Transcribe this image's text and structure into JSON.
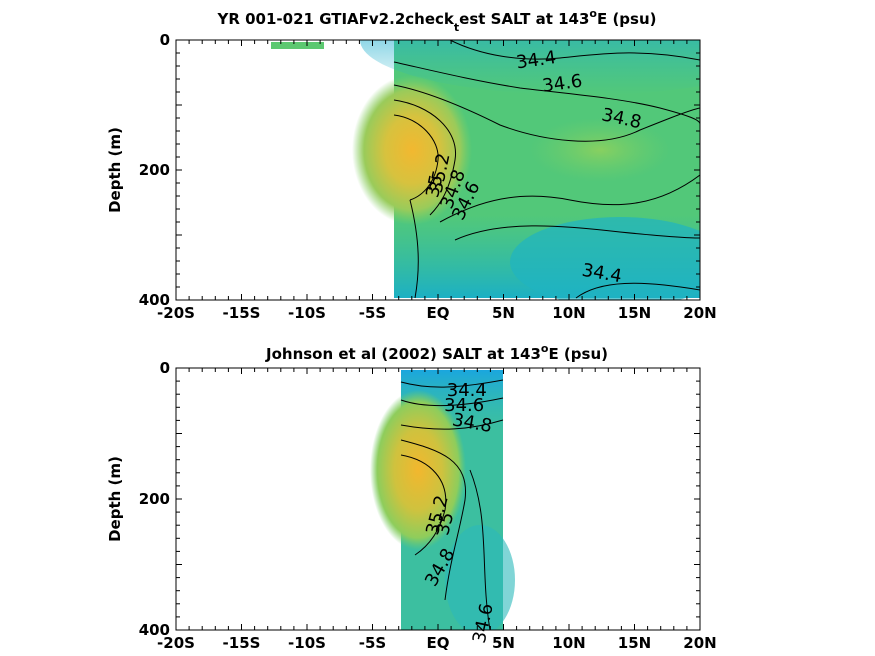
{
  "chart_data": [
    {
      "type": "heatmap",
      "title_main": "YR 001-021 GTIAFv2.2check",
      "title_sub": "t",
      "title_rest": "est SALT at 143",
      "title_deg": "o",
      "title_end": "E (psu)",
      "ylabel": "Depth (m)",
      "xlim": [
        -20,
        20
      ],
      "ylim": [
        400,
        0
      ],
      "x_ticklabels": [
        "-20S",
        "-15S",
        "-10S",
        "-5S",
        "EQ",
        "5N",
        "10N",
        "15N",
        "20N"
      ],
      "y_ticklabels": [
        "0",
        "200",
        "400"
      ],
      "data_extent": {
        "lat": [
          -3.5,
          20
        ],
        "depth": [
          0,
          400
        ]
      },
      "extra_patch": {
        "lat": [
          -12,
          -8
        ],
        "depth": [
          0,
          12
        ]
      },
      "contour_labels": [
        {
          "text": "34.4",
          "lat": 7.5,
          "depth": 32
        },
        {
          "text": "34.6",
          "lat": 9.5,
          "depth": 68
        },
        {
          "text": "34.8",
          "lat": 14,
          "depth": 122
        },
        {
          "text": "35.2",
          "lat": 0.2,
          "depth": 205
        },
        {
          "text": "35",
          "lat": -0.2,
          "depth": 225
        },
        {
          "text": "34.8",
          "lat": 1.2,
          "depth": 230
        },
        {
          "text": "34.6",
          "lat": 2.2,
          "depth": 248
        },
        {
          "text": "34.4",
          "lat": 12.5,
          "depth": 360
        }
      ]
    },
    {
      "type": "heatmap",
      "title_main": "Johnson et al (2002) SALT at 143",
      "title_deg": "o",
      "title_end": "E (psu)",
      "ylabel": "Depth (m)",
      "xlim": [
        -20,
        20
      ],
      "ylim": [
        400,
        0
      ],
      "x_ticklabels": [
        "-20S",
        "-15S",
        "-10S",
        "-5S",
        "EQ",
        "5N",
        "10N",
        "15N",
        "20N"
      ],
      "y_ticklabels": [
        "0",
        "200",
        "400"
      ],
      "data_extent": {
        "lat": [
          -3,
          5
        ],
        "depth": [
          0,
          400
        ]
      },
      "contour_labels": [
        {
          "text": "34.4",
          "lat": 2.2,
          "depth": 35
        },
        {
          "text": "34.6",
          "lat": 2.0,
          "depth": 58
        },
        {
          "text": "34.8",
          "lat": 2.6,
          "depth": 85
        },
        {
          "text": "35.2",
          "lat": 0.0,
          "depth": 225
        },
        {
          "text": "35",
          "lat": 0.6,
          "depth": 238
        },
        {
          "text": "34.8",
          "lat": 0.2,
          "depth": 305
        },
        {
          "text": "34.6",
          "lat": 3.5,
          "depth": 390
        }
      ]
    }
  ]
}
